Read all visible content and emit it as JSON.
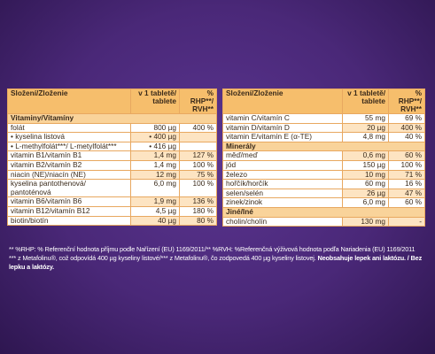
{
  "left_table": {
    "header": [
      "Složení/Zloženie",
      "v 1 tabletě/ tablete",
      "% RHP**/ RVH**"
    ],
    "sections": [
      {
        "title": "Vitaminy/Vitamíny",
        "rows": [
          {
            "name": "folát",
            "amount": "800 µg",
            "rhp": "400 %"
          },
          {
            "name": "• kyselina listová",
            "amount": "• 400 µg"
          },
          {
            "name": "• L-methylfolát***/ L-metylfolát***",
            "amount": "• 416 µg"
          },
          {
            "name": "vitamin B1/vitamín B1",
            "amount": "1,4 mg",
            "rhp": "127 %"
          },
          {
            "name": "vitamin B2/vitamín B2",
            "amount": "1,4 mg",
            "rhp": "100 %"
          },
          {
            "name": "niacin (NE)/niacín (NE)",
            "amount": "12 mg",
            "rhp": "75 %"
          },
          {
            "name": "kyselina pantothenová/ pantoténová",
            "amount": "6,0 mg",
            "rhp": "100 %"
          },
          {
            "name": "vitamin B6/vitamín B6",
            "amount": "1,9 mg",
            "rhp": "136 %"
          },
          {
            "name": "vitamin B12/vitamín B12",
            "amount": "4,5 µg",
            "rhp": "180 %"
          },
          {
            "name": "biotin/biotín",
            "amount": "40 µg",
            "rhp": "80 %"
          }
        ]
      }
    ]
  },
  "right_table": {
    "header": [
      "Složení/Zloženie",
      "v 1 tabletě/ tablete",
      "% RHP**/ RVH**"
    ],
    "sections": [
      {
        "rows": [
          {
            "name": "vitamin C/vitamín C",
            "amount": "55 mg",
            "rhp": "69 %"
          },
          {
            "name": "vitamin D/vitamín D",
            "amount": "20 µg",
            "rhp": "400 %"
          },
          {
            "name": "vitamin E/vitamín E (α-TE)",
            "amount": "4,8 mg",
            "rhp": "40 %"
          }
        ]
      },
      {
        "title": "Minerály",
        "rows": [
          {
            "name": "měď/meď",
            "amount": "0,6 mg",
            "rhp": "60 %"
          },
          {
            "name": "jód",
            "amount": "150 µg",
            "rhp": "100 %"
          },
          {
            "name": "železo",
            "amount": "10 mg",
            "rhp": "71 %"
          },
          {
            "name": "hořčík/horčík",
            "amount": "60 mg",
            "rhp": "16 %"
          },
          {
            "name": "selen/selén",
            "amount": "26 µg",
            "rhp": "47 %"
          },
          {
            "name": "zinek/zinok",
            "amount": "6,0 mg",
            "rhp": "60 %"
          }
        ]
      },
      {
        "title": "Jiné/Iné",
        "rows": [
          {
            "name": "cholin/cholín",
            "amount": "130 mg",
            "rhp": "-"
          }
        ]
      }
    ]
  },
  "footnotes": {
    "line1": "** %RHP: % Referenční hodnota příjmu podle Nařízení (EU) 1169/2011/** %RVH: %Referenčná výživová hodnota podľa Nariadenia (EU) 1169/2011",
    "line2": "*** z Metafolinu®, což odpovídá 400 µg kyseliny listové/*** z Metafolinu®, čo zodpovedá 400 µg kyseliny listovej.",
    "bold": "Neobsahuje lepek ani laktózu. / Bez lepku a laktózy."
  }
}
